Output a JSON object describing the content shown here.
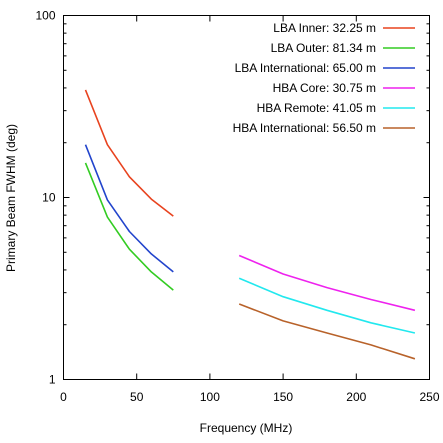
{
  "chart_data": {
    "type": "line",
    "title": "",
    "xlabel": "Frequency (MHz)",
    "ylabel": "Primary Beam FWHM (deg)",
    "xlim": [
      0,
      250
    ],
    "ylim": [
      1,
      100
    ],
    "yscale": "log",
    "grid": false,
    "legend_position": "top-right",
    "x_ticks": [
      {
        "value": 0,
        "label": "0"
      },
      {
        "value": 50,
        "label": "50"
      },
      {
        "value": 100,
        "label": "100"
      },
      {
        "value": 150,
        "label": "150"
      },
      {
        "value": 200,
        "label": "200"
      },
      {
        "value": 250,
        "label": "250"
      }
    ],
    "y_ticks": [
      {
        "value": 1,
        "label": "1"
      },
      {
        "value": 10,
        "label": "10"
      },
      {
        "value": 100,
        "label": "100"
      }
    ],
    "series": [
      {
        "name": "LBA Inner: 32.25 m",
        "color": "#e8431f",
        "x": [
          15,
          30,
          45,
          60,
          75
        ],
        "y": [
          39.0,
          19.5,
          13.0,
          9.8,
          7.9
        ]
      },
      {
        "name": "LBA Outer: 81.34 m",
        "color": "#33cc22",
        "x": [
          15,
          30,
          45,
          60,
          75
        ],
        "y": [
          15.5,
          7.8,
          5.2,
          3.9,
          3.1
        ]
      },
      {
        "name": "LBA International: 65.00 m",
        "color": "#2244cc",
        "x": [
          15,
          30,
          45,
          60,
          75
        ],
        "y": [
          19.5,
          9.7,
          6.5,
          4.9,
          3.9
        ]
      },
      {
        "name": "HBA Core: 30.75 m",
        "color": "#ee22ee",
        "x": [
          120,
          150,
          180,
          210,
          240
        ],
        "y": [
          4.8,
          3.8,
          3.2,
          2.75,
          2.4
        ]
      },
      {
        "name": "HBA Remote: 41.05 m",
        "color": "#22e8ee",
        "x": [
          120,
          150,
          180,
          210,
          240
        ],
        "y": [
          3.6,
          2.85,
          2.4,
          2.05,
          1.8
        ]
      },
      {
        "name": "HBA International: 56.50 m",
        "color": "#b8622a",
        "x": [
          120,
          150,
          180,
          210,
          240
        ],
        "y": [
          2.6,
          2.1,
          1.8,
          1.55,
          1.3
        ]
      }
    ]
  }
}
